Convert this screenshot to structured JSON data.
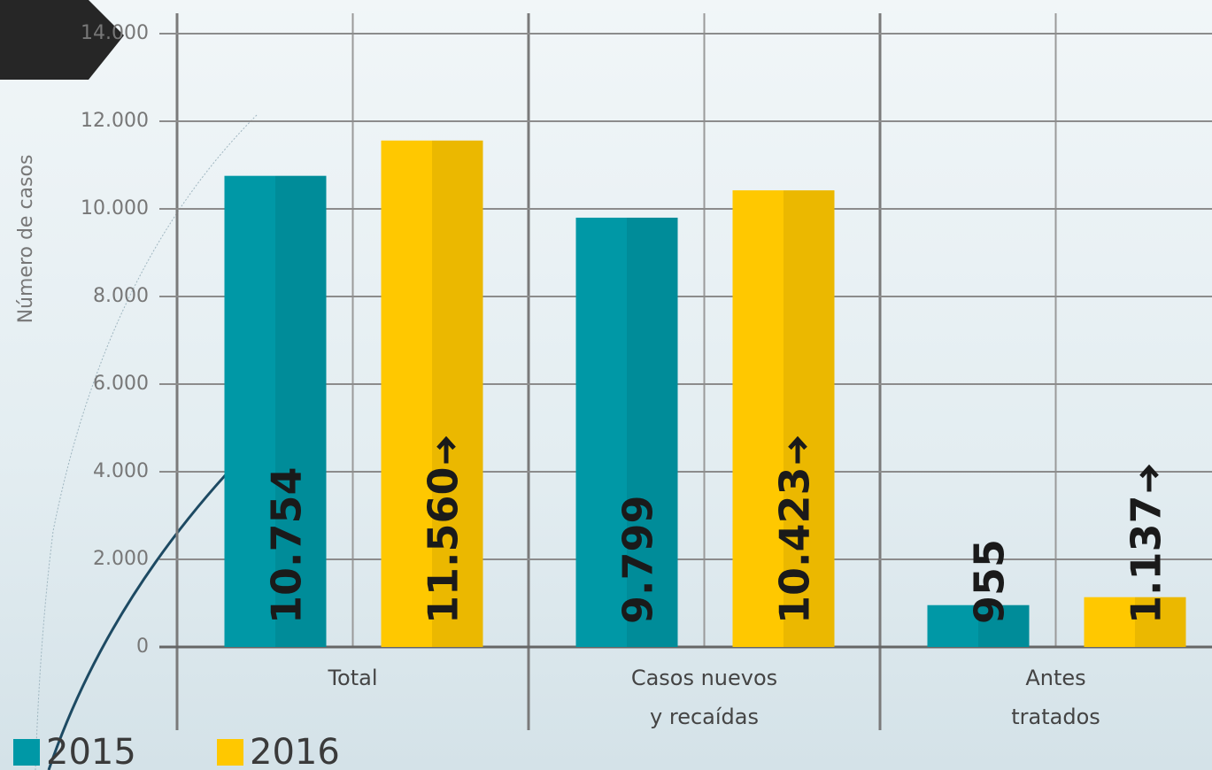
{
  "chart_data": {
    "type": "bar",
    "y_label": "Número de casos",
    "categories": [
      "Total",
      "Casos nuevos y recaídas",
      "Antes tratados"
    ],
    "series": [
      {
        "name": "2015",
        "color": "#0098a6",
        "values": [
          10754,
          9799,
          955
        ],
        "value_labels": [
          "10.754",
          "9.799",
          "955"
        ]
      },
      {
        "name": "2016",
        "color": "#ffc800",
        "values": [
          11560,
          10423,
          1137
        ],
        "value_labels": [
          "11.560",
          "10.423",
          "1.137"
        ]
      }
    ],
    "ylim": [
      0,
      14000
    ],
    "yticks": [
      0,
      {
        "value": 2000,
        "label": "2.000"
      },
      {
        "value": 4000,
        "label": "4.000"
      },
      {
        "value": 6000,
        "label": "6.000"
      },
      {
        "value": 8000,
        "label": "8.000"
      },
      {
        "value": 10000,
        "label": "10.000"
      },
      {
        "value": 12000,
        "label": "12.000"
      },
      {
        "value": 14000,
        "label": "14.000"
      }
    ],
    "grid": true
  }
}
